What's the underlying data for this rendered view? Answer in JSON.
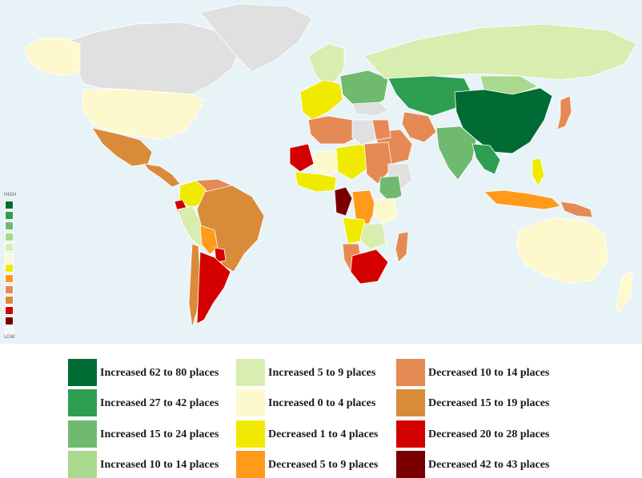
{
  "map": {
    "background_color": "#e8f3f8",
    "no_data_color": "#e0e0e0",
    "scale": {
      "high_label": "HIGH",
      "low_label": "LOW",
      "colors": [
        "#006b35",
        "#2e9e50",
        "#6fba6f",
        "#a8d98e",
        "#d8edb0",
        "#fdf9cc",
        "#f0ea00",
        "#ff9a1a",
        "#e58a55",
        "#d98b3a",
        "#d40000",
        "#7a0000",
        "#f4f4f4"
      ]
    },
    "regions": [
      {
        "name": "Canada",
        "color": "#e0e0e0"
      },
      {
        "name": "Alaska",
        "color": "#fdf9cc"
      },
      {
        "name": "Greenland",
        "color": "#e0e0e0"
      },
      {
        "name": "United States",
        "color": "#fdf9cc"
      },
      {
        "name": "Mexico",
        "color": "#d98b3a"
      },
      {
        "name": "Central America",
        "color": "#d98b3a"
      },
      {
        "name": "Colombia",
        "color": "#f0ea00"
      },
      {
        "name": "Venezuela",
        "color": "#e58a55"
      },
      {
        "name": "Ecuador",
        "color": "#d40000"
      },
      {
        "name": "Peru",
        "color": "#d8edb0"
      },
      {
        "name": "Brazil",
        "color": "#d98b3a"
      },
      {
        "name": "Bolivia",
        "color": "#ff9a1a"
      },
      {
        "name": "Paraguay",
        "color": "#d40000"
      },
      {
        "name": "Chile",
        "color": "#d98b3a"
      },
      {
        "name": "Argentina",
        "color": "#d40000"
      },
      {
        "name": "Scandinavia",
        "color": "#d8edb0"
      },
      {
        "name": "Western Europe",
        "color": "#f0ea00"
      },
      {
        "name": "Eastern Europe",
        "color": "#6fba6f"
      },
      {
        "name": "Russia",
        "color": "#d8edb0"
      },
      {
        "name": "Kazakhstan & Central Asia",
        "color": "#2e9e50"
      },
      {
        "name": "Mongolia",
        "color": "#a8d98e"
      },
      {
        "name": "China",
        "color": "#006b35"
      },
      {
        "name": "India",
        "color": "#6fba6f"
      },
      {
        "name": "Iran",
        "color": "#e58a55"
      },
      {
        "name": "Saudi Arabia",
        "color": "#e58a55"
      },
      {
        "name": "Turkey",
        "color": "#e0e0e0"
      },
      {
        "name": "Japan",
        "color": "#e58a55"
      },
      {
        "name": "Southeast Asia",
        "color": "#2e9e50"
      },
      {
        "name": "Indonesia",
        "color": "#ff9a1a"
      },
      {
        "name": "Papua New Guinea",
        "color": "#e58a55"
      },
      {
        "name": "Philippines",
        "color": "#f0ea00"
      },
      {
        "name": "Australia",
        "color": "#fdf9cc"
      },
      {
        "name": "New Zealand",
        "color": "#fdf9cc"
      },
      {
        "name": "Morocco & Algeria",
        "color": "#e58a55"
      },
      {
        "name": "Mauritania",
        "color": "#d40000"
      },
      {
        "name": "Mali",
        "color": "#fdf9cc"
      },
      {
        "name": "Niger & Chad",
        "color": "#f0ea00"
      },
      {
        "name": "Libya",
        "color": "#e0e0e0"
      },
      {
        "name": "Egypt",
        "color": "#e58a55"
      },
      {
        "name": "Sudan",
        "color": "#e58a55"
      },
      {
        "name": "Ethiopia",
        "color": "#e0e0e0"
      },
      {
        "name": "West Africa",
        "color": "#f0ea00"
      },
      {
        "name": "Central Africa",
        "color": "#7a0000"
      },
      {
        "name": "Congo",
        "color": "#ff9a1a"
      },
      {
        "name": "Kenya",
        "color": "#6fba6f"
      },
      {
        "name": "Tanzania",
        "color": "#fdf9cc"
      },
      {
        "name": "Angola",
        "color": "#f0ea00"
      },
      {
        "name": "Namibia",
        "color": "#e58a55"
      },
      {
        "name": "South Africa",
        "color": "#d40000"
      },
      {
        "name": "Madagascar",
        "color": "#e58a55"
      },
      {
        "name": "Zambia & Zimbabwe",
        "color": "#d8edb0"
      }
    ]
  },
  "legend": [
    {
      "label": "Increased 62 to 80 places",
      "color": "#006b35"
    },
    {
      "label": "Increased 27 to 42 places",
      "color": "#2e9e50"
    },
    {
      "label": "Increased 15 to 24 places",
      "color": "#6fba6f"
    },
    {
      "label": "Increased 10 to 14 places",
      "color": "#a8d98e"
    },
    {
      "label": "Increased 5 to 9 places",
      "color": "#d8edb0"
    },
    {
      "label": "Increased 0 to 4 places",
      "color": "#fdf9cc"
    },
    {
      "label": "Decreased 1 to 4 places",
      "color": "#f0ea00"
    },
    {
      "label": "Decreased 5 to 9 places",
      "color": "#ff9a1a"
    },
    {
      "label": "Decreased 10 to 14 places",
      "color": "#e58a55"
    },
    {
      "label": "Decreased 15 to 19 places",
      "color": "#d98b3a"
    },
    {
      "label": "Decreased 20 to 28 places",
      "color": "#d40000"
    },
    {
      "label": "Decreased 42 to 43 places",
      "color": "#7a0000"
    }
  ]
}
